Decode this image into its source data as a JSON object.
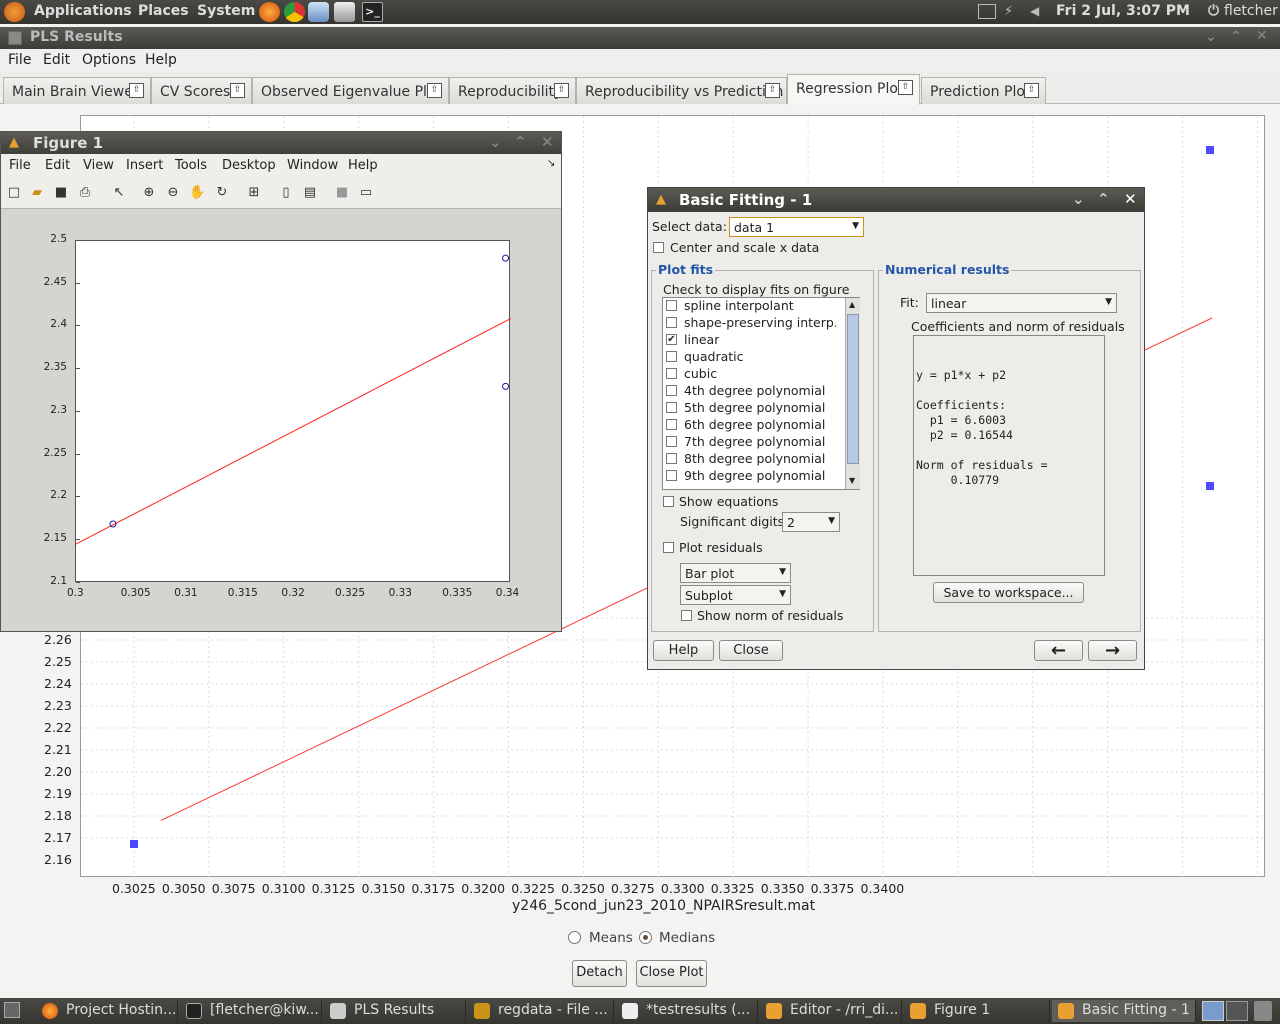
{
  "top_panel": {
    "applications": "Applications",
    "places": "Places",
    "system": "System",
    "clock": "Fri  2 Jul,  3:07 PM",
    "user": "fletcher"
  },
  "window": {
    "title": "PLS Results",
    "menus": [
      "File",
      "Edit",
      "Options",
      "Help"
    ],
    "tabs": [
      "Main Brain Viewer",
      "CV Scores",
      "Observed Eigenvalue Plot",
      "Reproducibility",
      "Reproducibility vs Prediction",
      "Regression Plot",
      "Prediction Plot"
    ],
    "selected_tab": "Regression Plot"
  },
  "regression_plot": {
    "xlabel": "y246_5cond_jun23_2010_NPAIRSresult.mat",
    "y_ticks": [
      "2.26",
      "2.25",
      "2.24",
      "2.23",
      "2.22",
      "2.21",
      "2.20",
      "2.19",
      "2.18",
      "2.17",
      "2.16"
    ],
    "x_ticks": [
      "0.3025",
      "0.3050",
      "0.3075",
      "0.3100",
      "0.3125",
      "0.3150",
      "0.3175",
      "0.3200",
      "0.3225",
      "0.3250",
      "0.3275",
      "0.3300",
      "0.3325",
      "0.3350",
      "0.3375",
      "0.3400"
    ],
    "radio_means": "Means",
    "radio_medians": "Medians",
    "selected_radio": "Medians",
    "detach_label": "Detach",
    "close_plot_label": "Close Plot",
    "chart_data": {
      "type": "scatter",
      "points": [
        {
          "x": 0.3034,
          "y": 2.169
        },
        {
          "x": 0.3395,
          "y": 2.48
        },
        {
          "x": 0.3395,
          "y": 2.33
        }
      ],
      "fit_line": {
        "slope": 6.6003,
        "intercept": 0.16544
      },
      "xlim": [
        0.302,
        0.3402
      ],
      "marker_color": "#4a4aff",
      "line_color": "#ff3a3a"
    }
  },
  "figure1": {
    "title": "Figure 1",
    "menus": [
      "File",
      "Edit",
      "View",
      "Insert",
      "Tools",
      "Desktop",
      "Window",
      "Help"
    ],
    "y_ticks": [
      "2.5",
      "2.45",
      "2.4",
      "2.35",
      "2.3",
      "2.25",
      "2.2",
      "2.15",
      "2.1"
    ],
    "x_ticks": [
      "0.3",
      "0.305",
      "0.31",
      "0.315",
      "0.32",
      "0.325",
      "0.33",
      "0.335",
      "0.34"
    ],
    "chart_data": {
      "type": "scatter",
      "xlim": [
        0.3,
        0.34
      ],
      "ylim": [
        2.1,
        2.5
      ],
      "points": [
        {
          "x": 0.3034,
          "y": 2.169
        },
        {
          "x": 0.3395,
          "y": 2.48
        },
        {
          "x": 0.3395,
          "y": 2.33
        }
      ],
      "fit_line": {
        "slope": 6.6003,
        "intercept": 0.16544
      },
      "marker_color": "#1a1aa0",
      "line_color": "#ff2020"
    }
  },
  "basic_fitting": {
    "title": "Basic Fitting - 1",
    "select_data_label": "Select data:",
    "select_data_value": "data 1",
    "center_scale_label": "Center and scale x data",
    "plot_fits_title": "Plot fits",
    "check_display_label": "Check to display fits on figure",
    "fits": [
      {
        "label": "spline interpolant",
        "checked": false
      },
      {
        "label": "shape-preserving interp...",
        "checked": false
      },
      {
        "label": "linear",
        "checked": true
      },
      {
        "label": "quadratic",
        "checked": false
      },
      {
        "label": "cubic",
        "checked": false
      },
      {
        "label": "4th degree polynomial",
        "checked": false
      },
      {
        "label": "5th degree polynomial",
        "checked": false
      },
      {
        "label": "6th degree polynomial",
        "checked": false
      },
      {
        "label": "7th degree polynomial",
        "checked": false
      },
      {
        "label": "8th degree polynomial",
        "checked": false
      },
      {
        "label": "9th degree polynomial",
        "checked": false
      }
    ],
    "show_equations": "Show equations",
    "sig_digits_label": "Significant digits:",
    "sig_digits_value": "2",
    "plot_residuals": "Plot residuals",
    "residual_plot_type": "Bar plot",
    "residual_location": "Subplot",
    "show_norm": "Show norm of residuals",
    "numerical_title": "Numerical results",
    "fit_label": "Fit:",
    "fit_value": "linear",
    "coeff_header": "Coefficients and norm of residuals",
    "results_lines": [
      "y = p1*x + p2",
      "",
      "Coefficients:",
      "  p1 = 6.6003",
      "  p2 = 0.16544",
      "",
      "Norm of residuals =",
      "     0.10779"
    ],
    "save_workspace": "Save to workspace...",
    "help_label": "Help",
    "close_label": "Close",
    "left_arrow": "←",
    "right_arrow": "→"
  },
  "taskbar": {
    "items": [
      "Project Hostin...",
      "[fletcher@kiw...",
      "PLS Results",
      "regdata - File ...",
      "*testresults (...",
      "Editor - /rri_di...",
      "Figure 1",
      "Basic Fitting - 1"
    ]
  }
}
